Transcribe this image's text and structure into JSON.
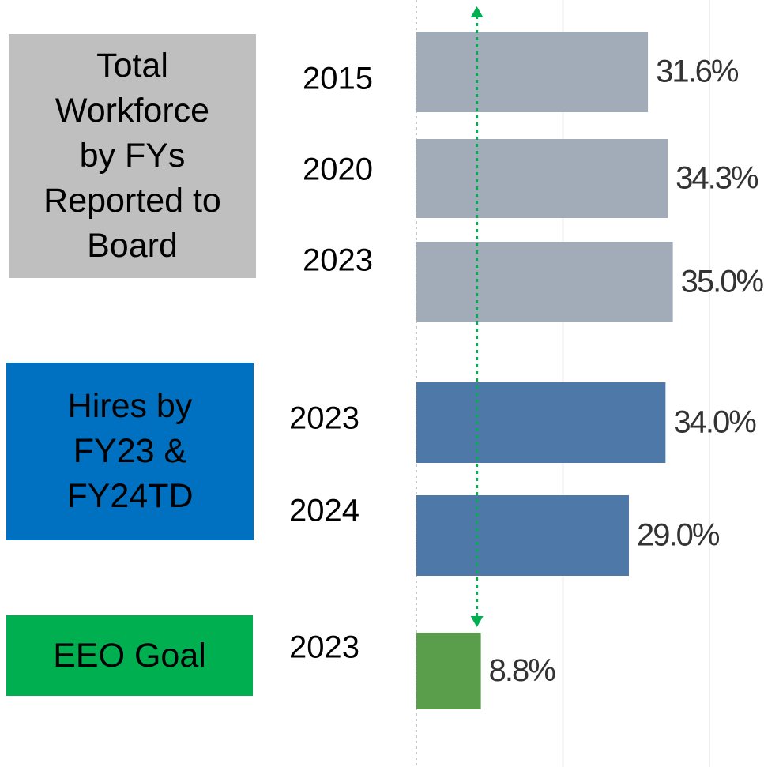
{
  "chart_data": {
    "type": "bar",
    "orientation": "horizontal",
    "xlim": [
      0,
      40
    ],
    "xgrid": [
      0,
      20,
      40
    ],
    "target_line": {
      "value": 8.8,
      "color": "#00b050"
    },
    "groups": [
      {
        "label": "Total\nWorkforce\nby FYs\nReported to\nBoard",
        "box_color": "#bfbfbf",
        "color": "#a2acb9",
        "categories": [
          "2015",
          "2020",
          "2023"
        ],
        "values": [
          31.6,
          34.3,
          35.0
        ],
        "value_labels": [
          "31.6%",
          "34.3%",
          "35.0%"
        ]
      },
      {
        "label": "Hires by\nFY23 &\nFY24TD",
        "box_color": "#0070c0",
        "color": "#4e78a8",
        "categories": [
          "2023",
          "2024"
        ],
        "values": [
          34.0,
          29.0
        ],
        "value_labels": [
          "34.0%",
          "29.0%"
        ]
      },
      {
        "label": "EEO Goal",
        "box_color": "#00b050",
        "color": "#5a9e4b",
        "categories": [
          "2023"
        ],
        "values": [
          8.8
        ],
        "value_labels": [
          "8.8%"
        ]
      }
    ]
  }
}
